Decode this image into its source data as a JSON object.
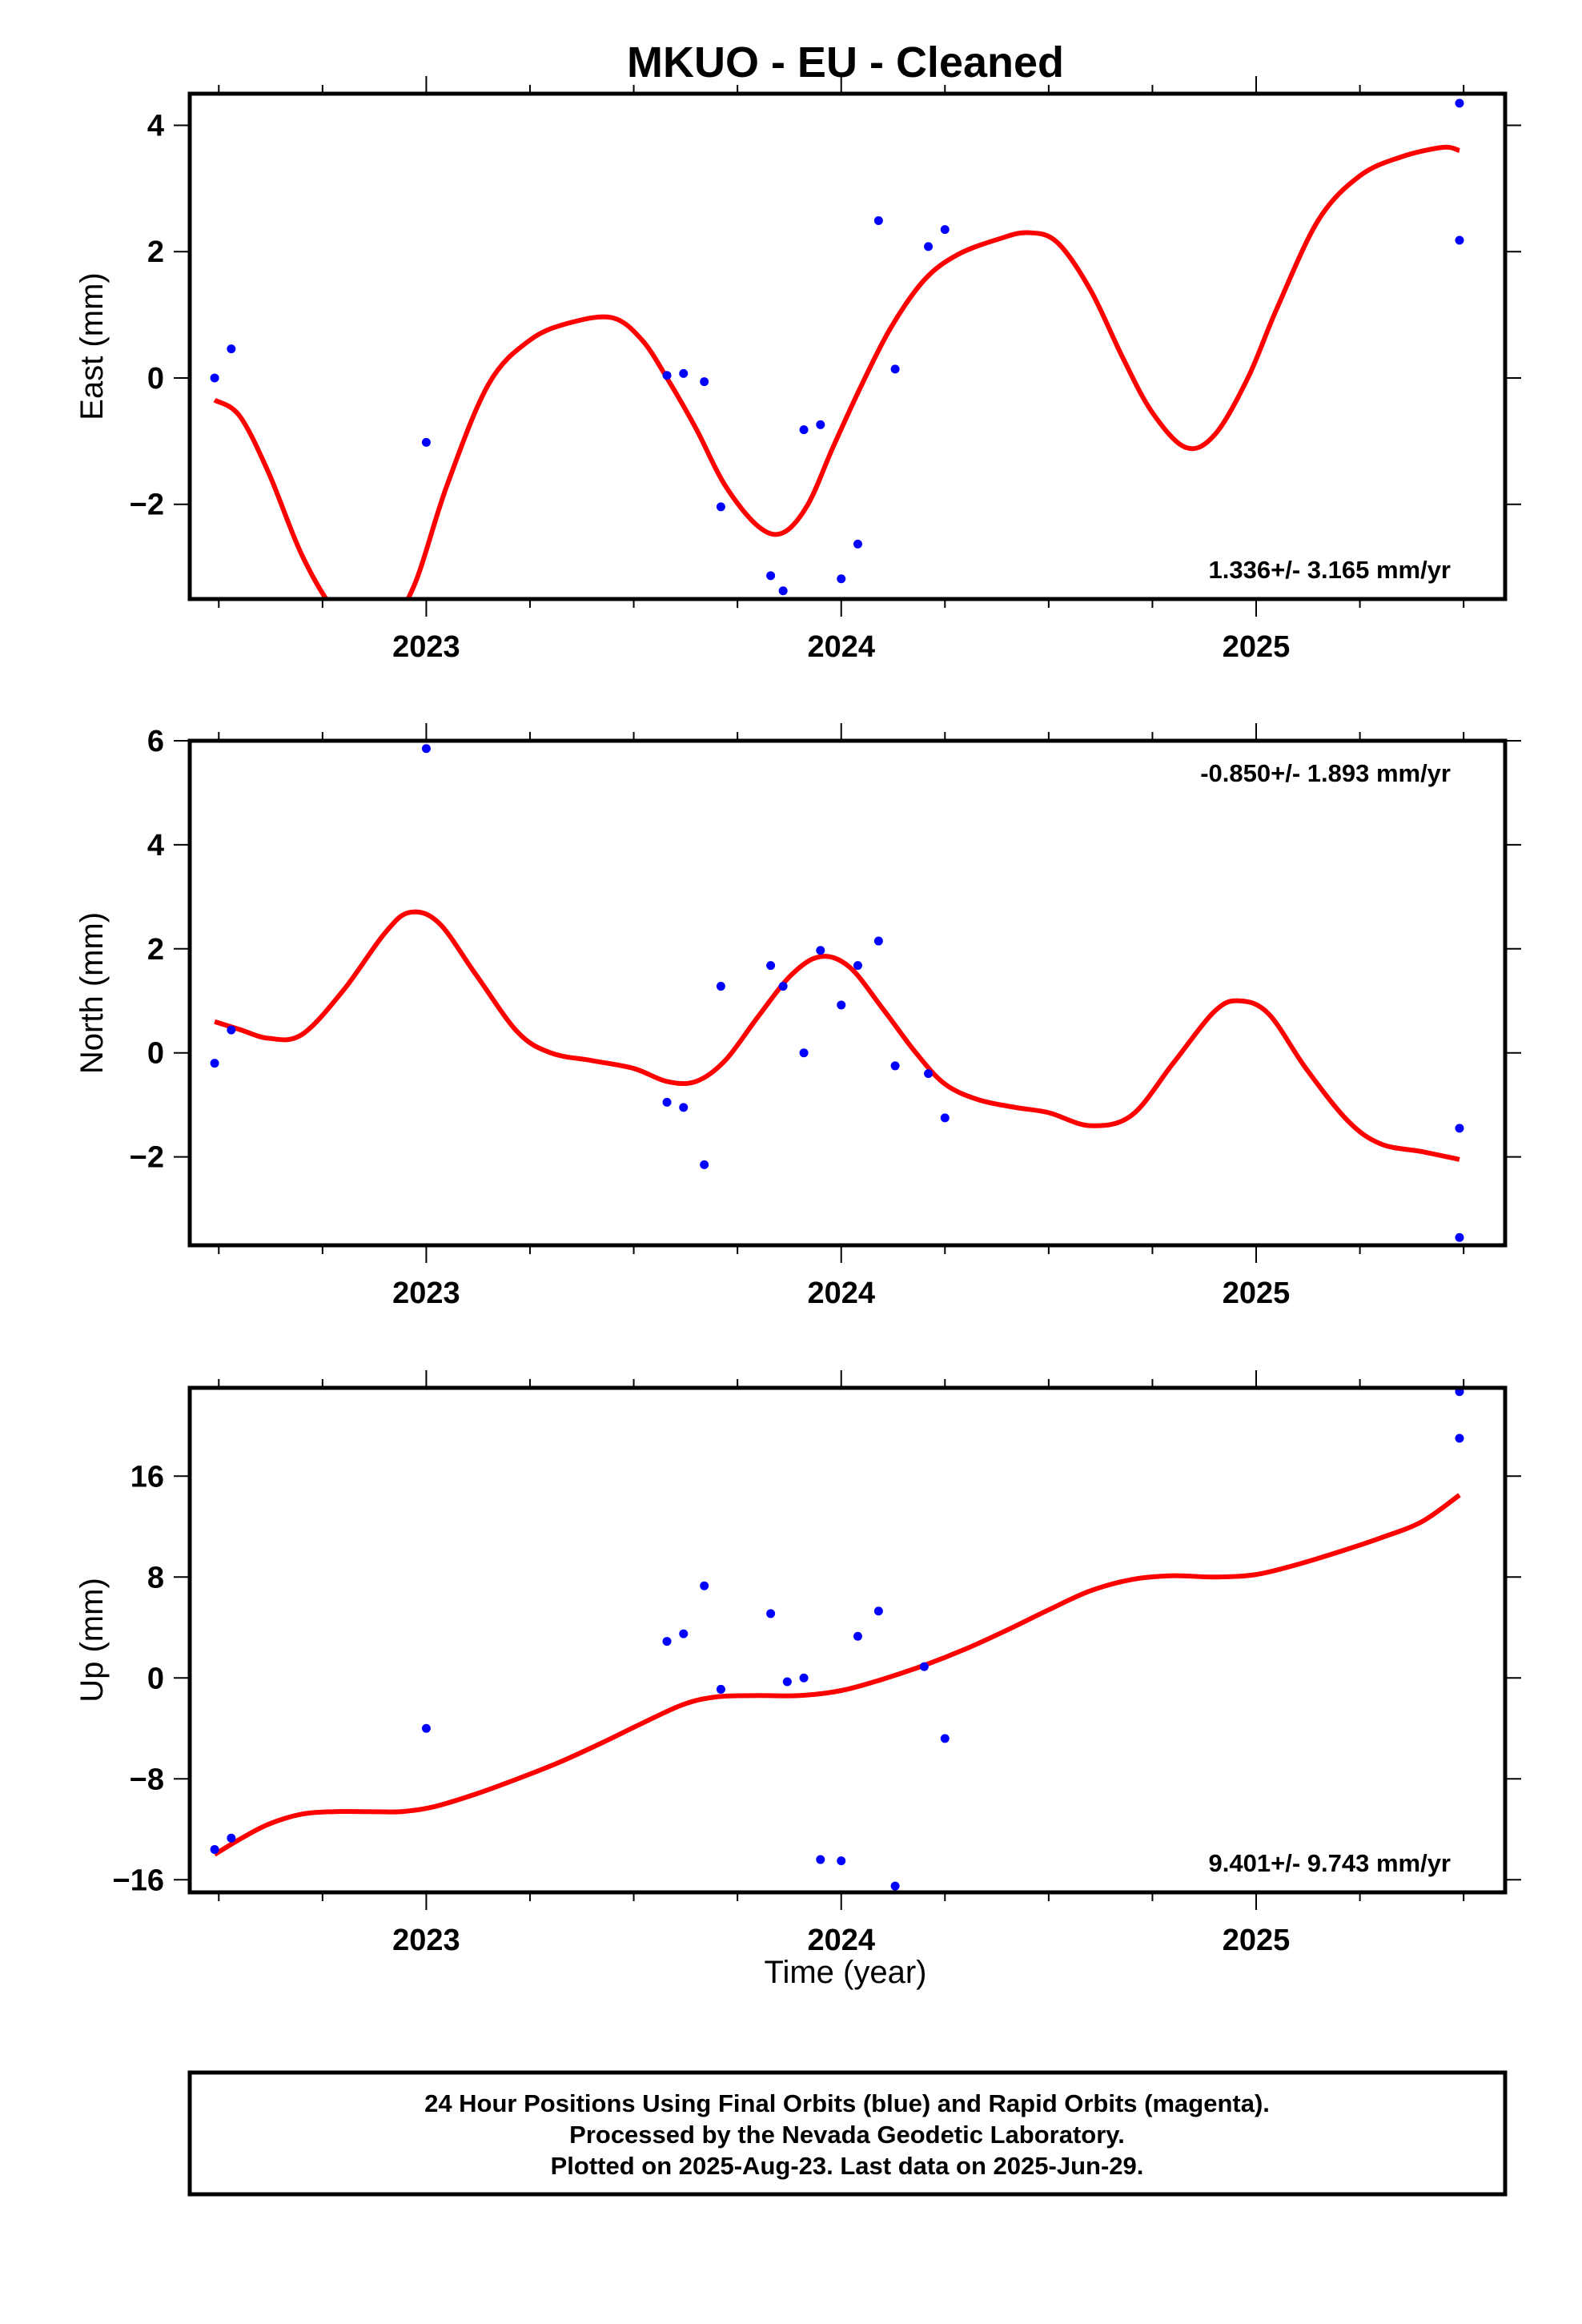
{
  "figure": {
    "title": "MKUO  - EU - Cleaned",
    "xlabel": "Time (year)",
    "footer": [
      "24 Hour Positions Using Final Orbits (blue) and Rapid Orbits (magenta).",
      "Processed by the Nevada Geodetic Laboratory.",
      "Plotted on 2025-Aug-23. Last data on 2025-Jun-29."
    ],
    "colors": {
      "final_orbits": "#0000ff",
      "rapid_orbits": "#ff00ff",
      "fit": "#ff0000",
      "frame": "#000000"
    }
  },
  "chart_data": [
    {
      "type": "scatter",
      "ylabel": "East (mm)",
      "rate_label": "1.336+/- 3.165 mm/yr",
      "xlim": [
        2022.43,
        2025.6
      ],
      "ylim": [
        -3.5,
        4.5
      ],
      "xticks": [
        2023,
        2024,
        2025
      ],
      "xtick_labels": [
        "2023",
        "2024",
        "2025"
      ],
      "yticks": [
        -2,
        0,
        2,
        4
      ],
      "ytick_labels": [
        "−2",
        "0",
        "2",
        "4"
      ],
      "points": [
        {
          "x": 2022.49,
          "y": 0.0
        },
        {
          "x": 2022.53,
          "y": 0.46
        },
        {
          "x": 2023.0,
          "y": -1.02
        },
        {
          "x": 2023.58,
          "y": 0.04
        },
        {
          "x": 2023.62,
          "y": 0.07
        },
        {
          "x": 2023.67,
          "y": -0.06
        },
        {
          "x": 2023.71,
          "y": -2.04
        },
        {
          "x": 2023.83,
          "y": -3.13
        },
        {
          "x": 2023.86,
          "y": -3.37
        },
        {
          "x": 2023.91,
          "y": -0.82
        },
        {
          "x": 2023.95,
          "y": -0.74
        },
        {
          "x": 2024.0,
          "y": -3.18
        },
        {
          "x": 2024.04,
          "y": -2.63
        },
        {
          "x": 2024.09,
          "y": 2.49
        },
        {
          "x": 2024.13,
          "y": 0.14
        },
        {
          "x": 2024.21,
          "y": 2.08
        },
        {
          "x": 2024.25,
          "y": 2.35
        },
        {
          "x": 2025.49,
          "y": 4.35
        },
        {
          "x": 2025.49,
          "y": 2.18
        }
      ],
      "fit": {
        "x": [
          2022.49,
          2022.55,
          2022.62,
          2022.7,
          2022.78,
          2022.85,
          2022.9,
          2022.97,
          2023.05,
          2023.15,
          2023.25,
          2023.35,
          2023.45,
          2023.52,
          2023.58,
          2023.65,
          2023.72,
          2023.8,
          2023.86,
          2023.92,
          2023.98,
          2024.05,
          2024.12,
          2024.2,
          2024.28,
          2024.38,
          2024.45,
          2024.52,
          2024.6,
          2024.68,
          2024.75,
          2024.83,
          2024.9,
          2024.98,
          2025.05,
          2025.15,
          2025.25,
          2025.35,
          2025.45,
          2025.49
        ],
        "y": [
          -0.35,
          -0.6,
          -1.5,
          -2.8,
          -3.7,
          -4.1,
          -4.0,
          -3.3,
          -1.7,
          -0.1,
          0.6,
          0.88,
          0.95,
          0.6,
          0.0,
          -0.8,
          -1.7,
          -2.35,
          -2.45,
          -2.0,
          -1.1,
          -0.1,
          0.8,
          1.55,
          1.95,
          2.2,
          2.3,
          2.15,
          1.4,
          0.3,
          -0.55,
          -1.1,
          -0.9,
          0.0,
          1.1,
          2.5,
          3.2,
          3.5,
          3.65,
          3.6
        ]
      }
    },
    {
      "type": "scatter",
      "ylabel": "North (mm)",
      "rate_label": "-0.850+/- 1.893 mm/yr",
      "xlim": [
        2022.43,
        2025.6
      ],
      "ylim": [
        -3.7,
        6.0
      ],
      "xticks": [
        2023,
        2024,
        2025
      ],
      "xtick_labels": [
        "2023",
        "2024",
        "2025"
      ],
      "yticks": [
        -2,
        0,
        2,
        4,
        6
      ],
      "ytick_labels": [
        "−2",
        "0",
        "2",
        "4",
        "6"
      ],
      "points": [
        {
          "x": 2022.49,
          "y": -0.2
        },
        {
          "x": 2022.53,
          "y": 0.44
        },
        {
          "x": 2023.0,
          "y": 5.85
        },
        {
          "x": 2023.58,
          "y": -0.95
        },
        {
          "x": 2023.62,
          "y": -1.05
        },
        {
          "x": 2023.67,
          "y": -2.15
        },
        {
          "x": 2023.71,
          "y": 1.28
        },
        {
          "x": 2023.83,
          "y": 1.68
        },
        {
          "x": 2023.86,
          "y": 1.28
        },
        {
          "x": 2023.91,
          "y": 0.0
        },
        {
          "x": 2023.95,
          "y": 1.97
        },
        {
          "x": 2024.0,
          "y": 0.92
        },
        {
          "x": 2024.04,
          "y": 1.68
        },
        {
          "x": 2024.09,
          "y": 2.15
        },
        {
          "x": 2024.13,
          "y": -0.25
        },
        {
          "x": 2024.21,
          "y": -0.4
        },
        {
          "x": 2024.25,
          "y": -1.25
        },
        {
          "x": 2025.49,
          "y": -1.45
        },
        {
          "x": 2025.49,
          "y": -3.55
        }
      ],
      "fit": {
        "x": [
          2022.49,
          2022.55,
          2022.62,
          2022.7,
          2022.8,
          2022.9,
          2022.96,
          2023.03,
          2023.12,
          2023.22,
          2023.3,
          2023.4,
          2023.5,
          2023.58,
          2023.65,
          2023.72,
          2023.8,
          2023.88,
          2023.95,
          2024.02,
          2024.1,
          2024.18,
          2024.25,
          2024.33,
          2024.42,
          2024.5,
          2024.6,
          2024.7,
          2024.8,
          2024.9,
          2024.96,
          2025.03,
          2025.12,
          2025.22,
          2025.3,
          2025.4,
          2025.49
        ],
        "y": [
          0.6,
          0.45,
          0.28,
          0.35,
          1.2,
          2.3,
          2.7,
          2.5,
          1.5,
          0.4,
          0.0,
          -0.15,
          -0.3,
          -0.55,
          -0.55,
          -0.15,
          0.7,
          1.5,
          1.85,
          1.65,
          0.85,
          0.0,
          -0.6,
          -0.9,
          -1.05,
          -1.15,
          -1.4,
          -1.2,
          -0.2,
          0.8,
          1.0,
          0.75,
          -0.3,
          -1.3,
          -1.75,
          -1.9,
          -2.05
        ]
      }
    },
    {
      "type": "scatter",
      "ylabel": "Up (mm)",
      "rate_label": "9.401+/- 9.743 mm/yr",
      "xlim": [
        2022.43,
        2025.6
      ],
      "ylim": [
        -17.0,
        23.0
      ],
      "xticks": [
        2023,
        2024,
        2025
      ],
      "xtick_labels": [
        "2023",
        "2024",
        "2025"
      ],
      "yticks": [
        -16,
        -8,
        0,
        8,
        16
      ],
      "ytick_labels": [
        "−16",
        "−8",
        "0",
        "8",
        "16"
      ],
      "points": [
        {
          "x": 2022.49,
          "y": -13.6
        },
        {
          "x": 2022.53,
          "y": -12.7
        },
        {
          "x": 2023.0,
          "y": -4.0
        },
        {
          "x": 2023.58,
          "y": 2.9
        },
        {
          "x": 2023.62,
          "y": 3.5
        },
        {
          "x": 2023.67,
          "y": 7.3
        },
        {
          "x": 2023.71,
          "y": -0.9
        },
        {
          "x": 2023.83,
          "y": 5.1
        },
        {
          "x": 2023.87,
          "y": -0.3
        },
        {
          "x": 2023.91,
          "y": 0.0
        },
        {
          "x": 2023.95,
          "y": -14.4
        },
        {
          "x": 2024.0,
          "y": -14.5
        },
        {
          "x": 2024.04,
          "y": 3.3
        },
        {
          "x": 2024.09,
          "y": 5.3
        },
        {
          "x": 2024.13,
          "y": -16.5
        },
        {
          "x": 2024.2,
          "y": 0.9
        },
        {
          "x": 2024.25,
          "y": -4.8
        },
        {
          "x": 2025.49,
          "y": 22.7
        },
        {
          "x": 2025.49,
          "y": 19.0
        }
      ],
      "fit": {
        "x": [
          2022.49,
          2022.55,
          2022.62,
          2022.7,
          2022.78,
          2022.86,
          2022.94,
          2023.02,
          2023.12,
          2023.22,
          2023.32,
          2023.42,
          2023.52,
          2023.62,
          2023.7,
          2023.8,
          2023.9,
          2024.0,
          2024.1,
          2024.2,
          2024.3,
          2024.4,
          2024.5,
          2024.6,
          2024.7,
          2024.8,
          2024.9,
          2025.0,
          2025.1,
          2025.2,
          2025.3,
          2025.4,
          2025.49
        ],
        "y": [
          -14.0,
          -12.8,
          -11.6,
          -10.8,
          -10.6,
          -10.6,
          -10.6,
          -10.2,
          -9.2,
          -8.0,
          -6.7,
          -5.2,
          -3.6,
          -2.1,
          -1.5,
          -1.4,
          -1.4,
          -1.0,
          -0.1,
          1.0,
          2.3,
          3.8,
          5.4,
          6.9,
          7.8,
          8.1,
          8.0,
          8.2,
          9.0,
          10.0,
          11.1,
          12.4,
          14.5
        ]
      }
    }
  ]
}
